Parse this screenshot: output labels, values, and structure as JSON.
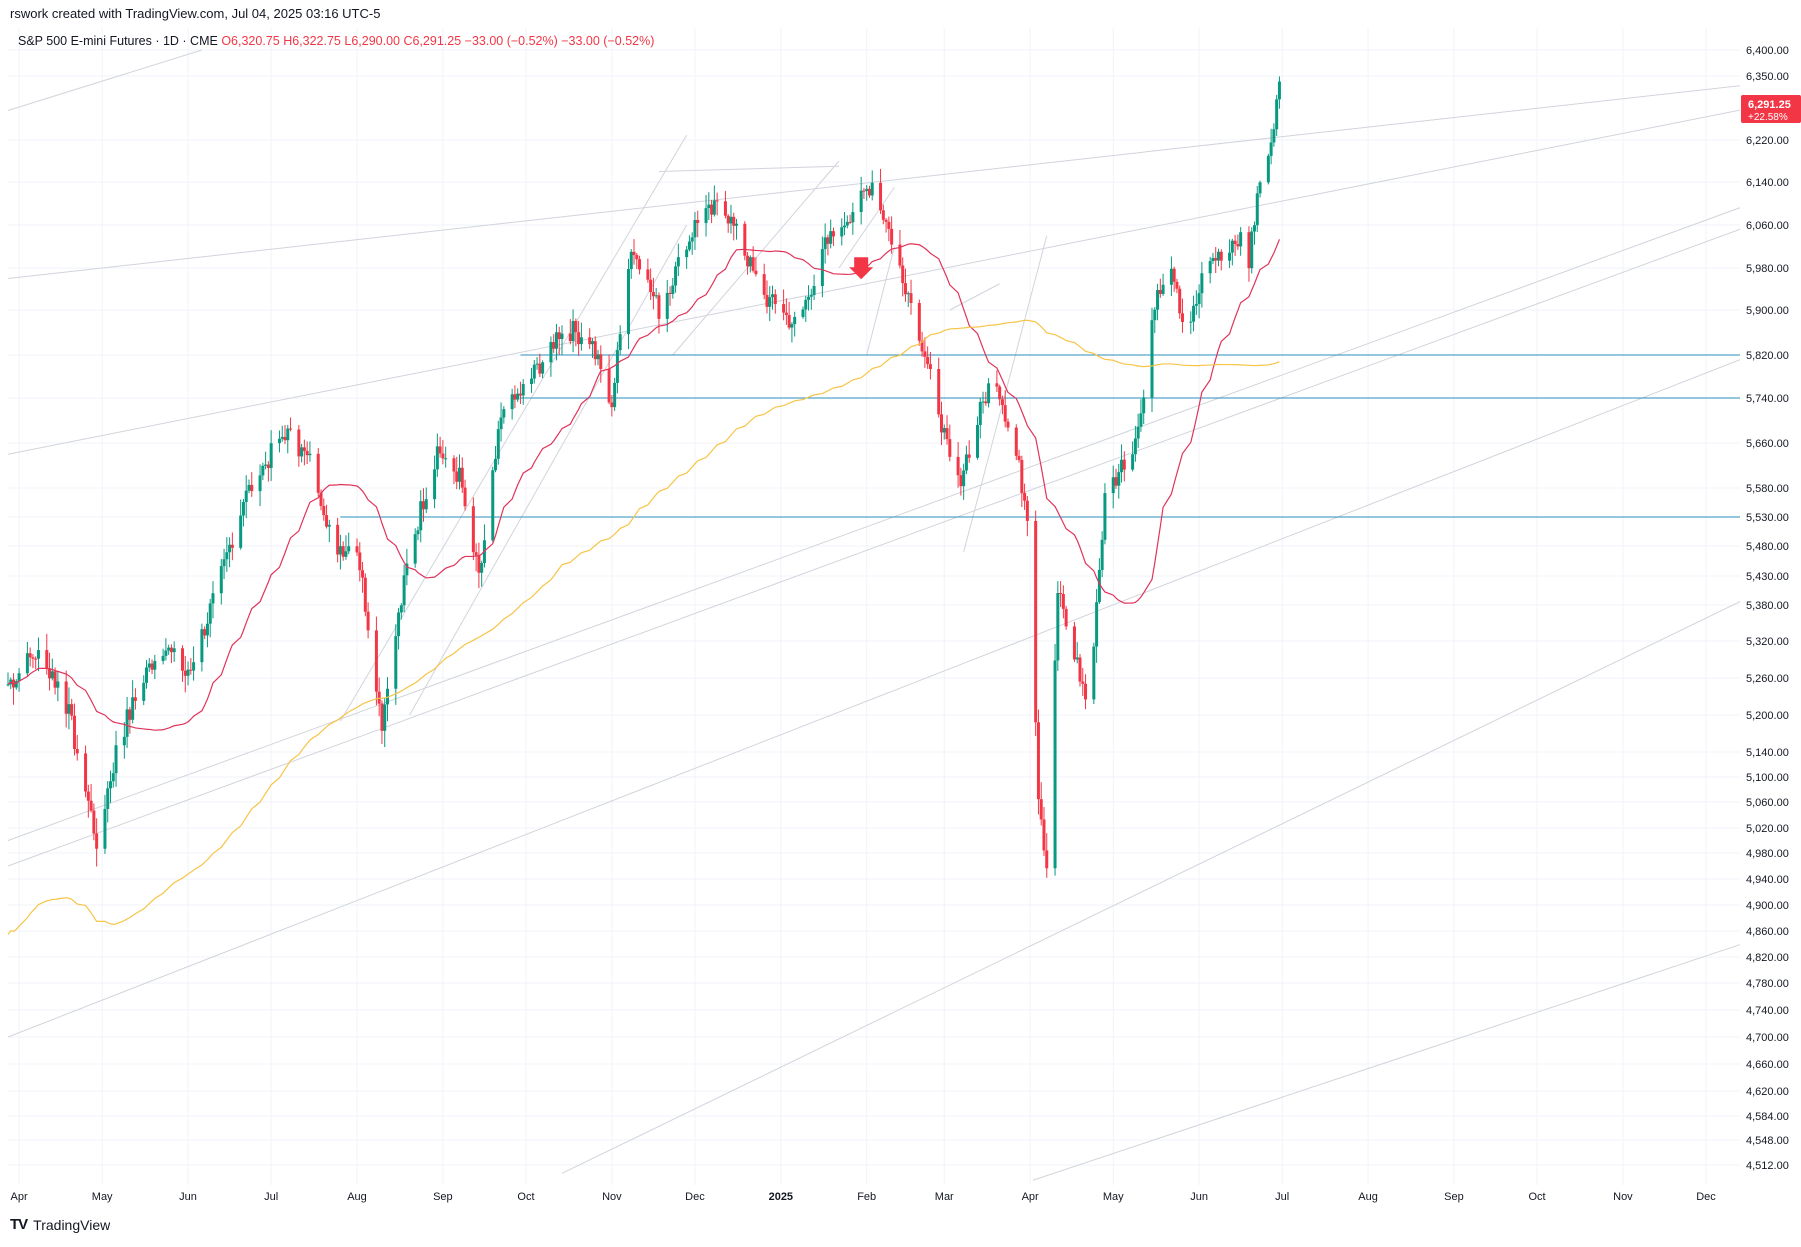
{
  "header": {
    "creator": "rswork created with TradingView.com, Jul 04, 2025 03:16 UTC-5"
  },
  "legend": {
    "symbol": "S&P 500 E-mini Futures · 1D · CME",
    "open": "O6,320.75",
    "high": "H6,322.75",
    "low": "L6,290.00",
    "close": "C6,291.25",
    "change": "−33.00 (−0.52%)",
    "change2": "−33.00 (−0.52%)"
  },
  "price_tag": {
    "price": "6,291.25",
    "pct": "+22.58%"
  },
  "footer": {
    "brand": "TradingView"
  },
  "colors": {
    "up": "#089981",
    "down": "#f23645",
    "ma_fast": "#e0335a",
    "ma_slow": "#f7c447",
    "hline": "#2a8fbd",
    "trend": "#d1d4dc"
  },
  "chart_data": {
    "type": "candlestick",
    "title": "S&P 500 E-mini Futures · 1D · CME",
    "y_axis": {
      "scale": "log",
      "ticks": [
        6400,
        6350,
        6220,
        6140,
        6060,
        5980,
        5900,
        5820,
        5740,
        5660,
        5580,
        5530,
        5480,
        5430,
        5380,
        5320,
        5260,
        5200,
        5140,
        5100,
        5060,
        5020,
        4980,
        4940,
        4900,
        4860,
        4820,
        4780,
        4740,
        4700,
        4660,
        4620,
        4584,
        4548,
        4512
      ],
      "tick_labels": [
        "6,400.00",
        "6,350.00",
        "6,220.00",
        "6,140.00",
        "6,060.00",
        "5,980.00",
        "5,900.00",
        "5,820.00",
        "5,740.00",
        "5,660.00",
        "5,580.00",
        "5,530.00",
        "5,480.00",
        "5,430.00",
        "5,380.00",
        "5,320.00",
        "5,260.00",
        "5,200.00",
        "5,140.00",
        "5,100.00",
        "5,060.00",
        "5,020.00",
        "4,980.00",
        "4,940.00",
        "4,900.00",
        "4,860.00",
        "4,820.00",
        "4,780.00",
        "4,740.00",
        "4,700.00",
        "4,660.00",
        "4,620.00",
        "4,584.00",
        "4,548.00",
        "4,512.00"
      ]
    },
    "x_axis": {
      "labels": [
        "Apr",
        "May",
        "Jun",
        "Jul",
        "Aug",
        "Sep",
        "Oct",
        "Nov",
        "Dec",
        "2025",
        "Feb",
        "Mar",
        "Apr",
        "May",
        "Jun",
        "Jul",
        "Aug",
        "Sep",
        "Oct",
        "Nov",
        "Dec"
      ],
      "label_days": [
        4,
        34,
        65,
        95,
        126,
        157,
        187,
        218,
        248,
        279,
        310,
        338,
        369,
        399,
        430,
        460,
        491,
        522,
        552,
        583,
        613
      ]
    },
    "horizontal_levels": [
      5820,
      5740,
      5530
    ],
    "key_points": [
      {
        "day": 0,
        "close": 5250
      },
      {
        "day": 10,
        "close": 5300
      },
      {
        "day": 20,
        "close": 5240
      },
      {
        "day": 32,
        "close": 5000
      },
      {
        "day": 40,
        "close": 5160
      },
      {
        "day": 55,
        "close": 5320
      },
      {
        "day": 65,
        "close": 5260
      },
      {
        "day": 75,
        "close": 5400
      },
      {
        "day": 85,
        "close": 5560
      },
      {
        "day": 100,
        "close": 5680
      },
      {
        "day": 110,
        "close": 5620
      },
      {
        "day": 118,
        "close": 5480
      },
      {
        "day": 126,
        "close": 5480
      },
      {
        "day": 135,
        "close": 5190
      },
      {
        "day": 145,
        "close": 5470
      },
      {
        "day": 155,
        "close": 5650
      },
      {
        "day": 163,
        "close": 5600
      },
      {
        "day": 170,
        "close": 5420
      },
      {
        "day": 178,
        "close": 5700
      },
      {
        "day": 188,
        "close": 5770
      },
      {
        "day": 200,
        "close": 5870
      },
      {
        "day": 210,
        "close": 5850
      },
      {
        "day": 218,
        "close": 5730
      },
      {
        "day": 225,
        "close": 6020
      },
      {
        "day": 235,
        "close": 5900
      },
      {
        "day": 248,
        "close": 6060
      },
      {
        "day": 258,
        "close": 6100
      },
      {
        "day": 266,
        "close": 6010
      },
      {
        "day": 272,
        "close": 5930
      },
      {
        "day": 285,
        "close": 5870
      },
      {
        "day": 295,
        "close": 6020
      },
      {
        "day": 305,
        "close": 6090
      },
      {
        "day": 312,
        "close": 6140
      },
      {
        "day": 320,
        "close": 6020
      },
      {
        "day": 328,
        "close": 5880
      },
      {
        "day": 335,
        "close": 5750
      },
      {
        "day": 342,
        "close": 5570
      },
      {
        "day": 350,
        "close": 5700
      },
      {
        "day": 356,
        "close": 5790
      },
      {
        "day": 363,
        "close": 5660
      },
      {
        "day": 368,
        "close": 5540
      },
      {
        "day": 372,
        "close": 5080
      },
      {
        "day": 375,
        "close": 4960
      },
      {
        "day": 379,
        "close": 5400
      },
      {
        "day": 385,
        "close": 5300
      },
      {
        "day": 390,
        "close": 5210
      },
      {
        "day": 396,
        "close": 5560
      },
      {
        "day": 402,
        "close": 5620
      },
      {
        "day": 408,
        "close": 5680
      },
      {
        "day": 414,
        "close": 5920
      },
      {
        "day": 420,
        "close": 5960
      },
      {
        "day": 426,
        "close": 5850
      },
      {
        "day": 432,
        "close": 5980
      },
      {
        "day": 438,
        "close": 6010
      },
      {
        "day": 444,
        "close": 6040
      },
      {
        "day": 448,
        "close": 5990
      },
      {
        "day": 451,
        "close": 6110
      },
      {
        "day": 456,
        "close": 6230
      },
      {
        "day": 459,
        "close": 6324
      },
      {
        "day": 460,
        "close": 6291
      }
    ]
  }
}
